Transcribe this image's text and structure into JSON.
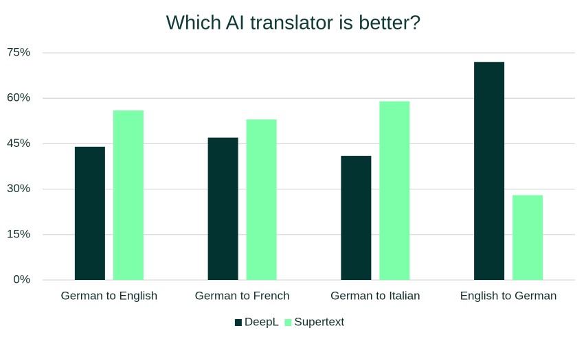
{
  "chart_data": {
    "type": "bar",
    "title": "Which AI translator is better?",
    "categories": [
      "German to English",
      "German to French",
      "German to Italian",
      "English to German"
    ],
    "series": [
      {
        "name": "DeepL",
        "color": "#033330",
        "values": [
          44,
          47,
          41,
          72
        ]
      },
      {
        "name": "Supertext",
        "color": "#7dffa9",
        "values": [
          56,
          53,
          59,
          28
        ]
      }
    ],
    "ylim": [
      0,
      75
    ],
    "yticks": [
      {
        "value": 0,
        "label": "0%"
      },
      {
        "value": 15,
        "label": "15%"
      },
      {
        "value": 30,
        "label": "30%"
      },
      {
        "value": 45,
        "label": "45%"
      },
      {
        "value": 60,
        "label": "60%"
      },
      {
        "value": 75,
        "label": "75%"
      }
    ],
    "grid": true,
    "legend": "bottom"
  }
}
